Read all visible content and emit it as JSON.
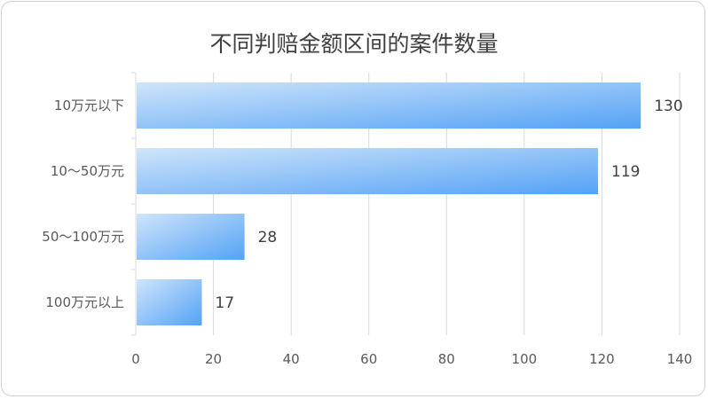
{
  "chart_data": {
    "type": "bar",
    "orientation": "horizontal",
    "title": "不同判赔金额区间的案件数量",
    "xlabel": "",
    "ylabel": "",
    "categories": [
      "10万元以下",
      "10～50万元",
      "50～100万元",
      "100万元以上"
    ],
    "values": [
      130,
      119,
      28,
      17
    ],
    "xlim": [
      0,
      140
    ],
    "xticks": [
      "0",
      "20",
      "40",
      "60",
      "80",
      "100",
      "120",
      "140"
    ],
    "grid": true,
    "legend": "none",
    "colors": {
      "bar_light": "#cfe5fb",
      "bar_dark": "#53a2f6",
      "grid": "#d9d9d9"
    }
  }
}
